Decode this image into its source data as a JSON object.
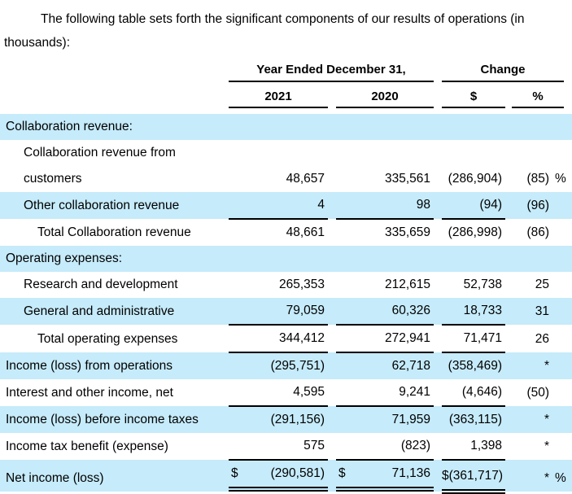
{
  "intro": "The following table sets forth the significant components of our results of operations (in thousands):",
  "colors": {
    "highlight": "#c6ebfa",
    "rule": "#000000",
    "text": "#000000",
    "background": "#ffffff"
  },
  "table": {
    "col_groups": {
      "year": "Year Ended December 31,",
      "change": "Change"
    },
    "columns": {
      "y2021": "2021",
      "y2020": "2020",
      "dollar": "$",
      "percent": "%"
    },
    "rows": [
      {
        "label": "Collaboration revenue:"
      },
      {
        "label": "Collaboration revenue from customers",
        "v2021": "48,657",
        "v2020": "335,561",
        "chg": "(286,904)",
        "pct": "(85)",
        "sfx": "%"
      },
      {
        "label": "Other collaboration revenue",
        "v2021": "4",
        "v2020": "98",
        "chg": "(94)",
        "pct": "(96)"
      },
      {
        "label": "Total Collaboration revenue",
        "v2021": "48,661",
        "v2020": "335,659",
        "chg": "(286,998)",
        "pct": "(86)"
      },
      {
        "label": "Operating expenses:"
      },
      {
        "label": "Research and development",
        "v2021": "265,353",
        "v2020": "212,615",
        "chg": "52,738",
        "pct": "25"
      },
      {
        "label": "General and administrative",
        "v2021": "79,059",
        "v2020": "60,326",
        "chg": "18,733",
        "pct": "31"
      },
      {
        "label": "Total operating expenses",
        "v2021": "344,412",
        "v2020": "272,941",
        "chg": "71,471",
        "pct": "26"
      },
      {
        "label": "Income (loss) from operations",
        "v2021": "(295,751)",
        "v2020": "62,718",
        "chg": "(358,469)",
        "pct": "*"
      },
      {
        "label": "Interest and other income, net",
        "v2021": "4,595",
        "v2020": "9,241",
        "chg": "(4,646)",
        "pct": "(50)"
      },
      {
        "label": "Income (loss) before income taxes",
        "v2021": "(291,156)",
        "v2020": "71,959",
        "chg": "(363,115)",
        "pct": "*"
      },
      {
        "label": "Income tax benefit (expense)",
        "v2021": "575",
        "v2020": "(823)",
        "chg": "1,398",
        "pct": "*"
      },
      {
        "label": "Net income (loss)",
        "cur2021": "$",
        "v2021": "(290,581)",
        "cur2020": "$",
        "v2020": "71,136",
        "chg": "$(361,717)",
        "pct": "*",
        "sfx": "%"
      }
    ]
  }
}
